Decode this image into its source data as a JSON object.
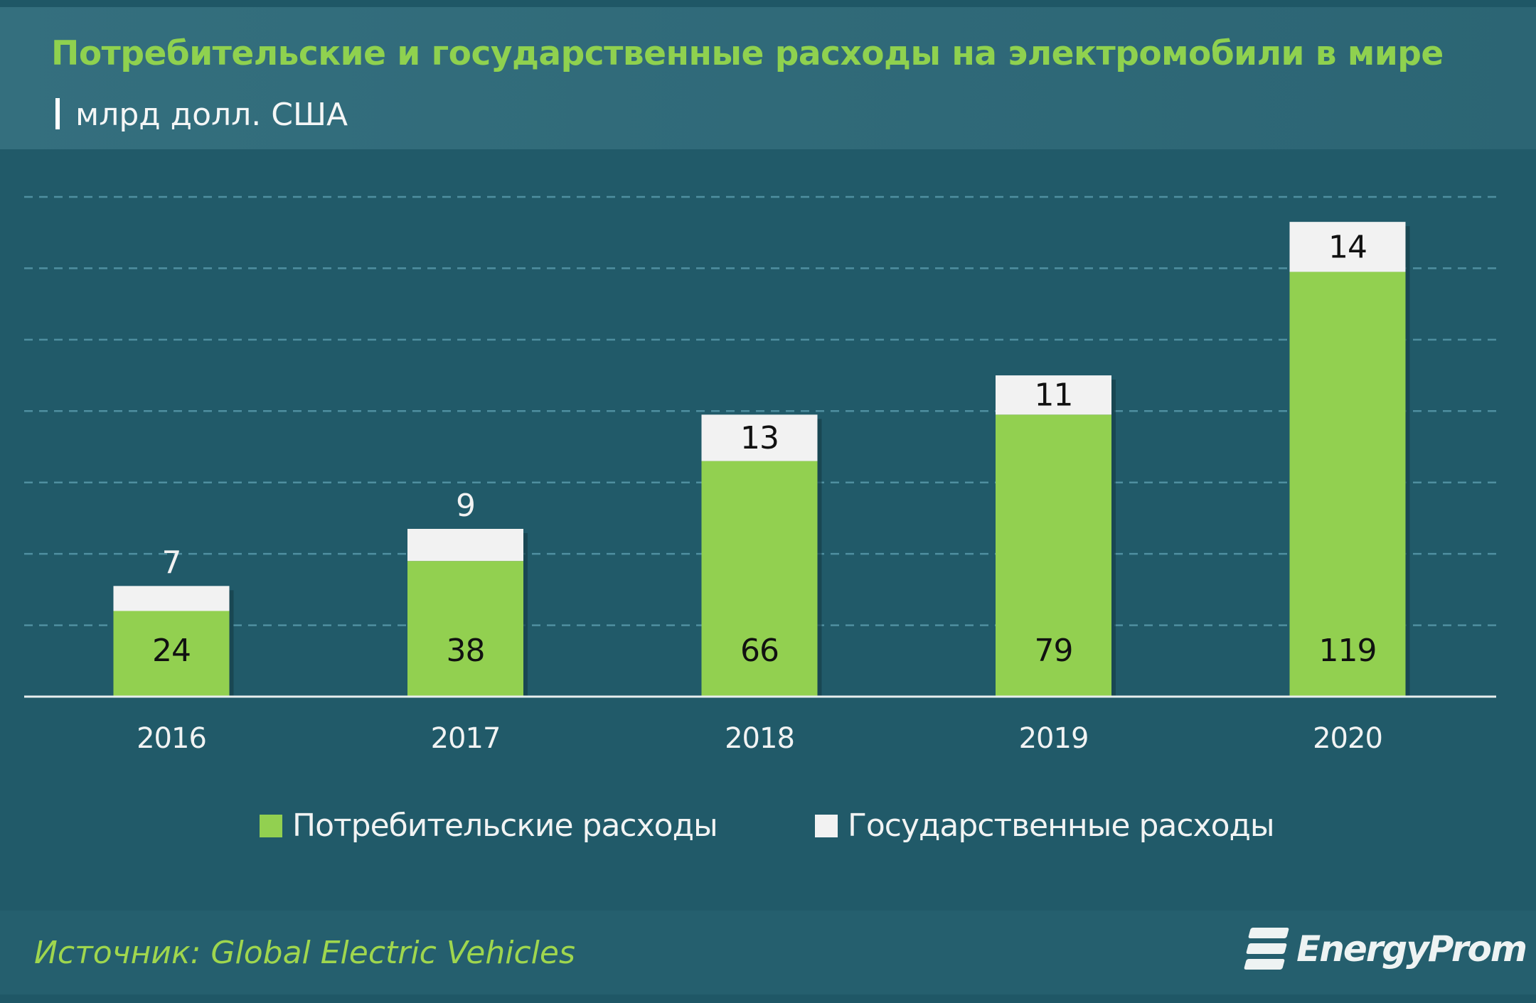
{
  "title": "Потребительские и государственные расходы на электромобили в мире",
  "subtitle": "млрд долл. США",
  "source": "Источник: Global Electric Vehicles",
  "logo_text": "EnergyProm",
  "chart_data": {
    "type": "bar",
    "stacked": true,
    "categories": [
      "2016",
      "2017",
      "2018",
      "2019",
      "2020"
    ],
    "series": [
      {
        "name": "Потребительские расходы",
        "values": [
          24,
          38,
          66,
          79,
          119
        ],
        "color": "#92d050"
      },
      {
        "name": "Государственные расходы",
        "values": [
          7,
          9,
          13,
          11,
          14
        ],
        "color": "#f2f2f2"
      }
    ],
    "ylim": [
      0,
      140
    ],
    "grid": true,
    "y_axis_labels_shown": false,
    "legend": "bottom-center"
  }
}
